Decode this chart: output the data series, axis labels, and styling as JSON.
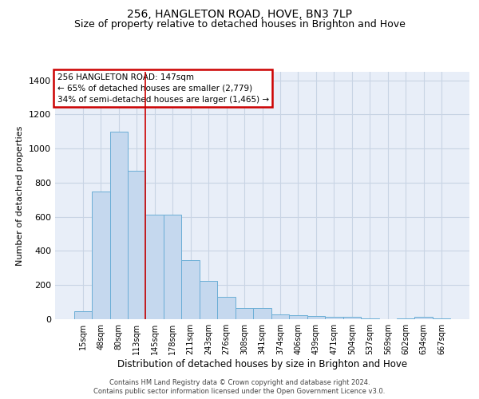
{
  "title": "256, HANGLETON ROAD, HOVE, BN3 7LP",
  "subtitle": "Size of property relative to detached houses in Brighton and Hove",
  "xlabel": "Distribution of detached houses by size in Brighton and Hove",
  "ylabel": "Number of detached properties",
  "footer_line1": "Contains HM Land Registry data © Crown copyright and database right 2024.",
  "footer_line2": "Contains public sector information licensed under the Open Government Licence v3.0.",
  "categories": [
    "15sqm",
    "48sqm",
    "80sqm",
    "113sqm",
    "145sqm",
    "178sqm",
    "211sqm",
    "243sqm",
    "276sqm",
    "308sqm",
    "341sqm",
    "374sqm",
    "406sqm",
    "439sqm",
    "471sqm",
    "504sqm",
    "537sqm",
    "569sqm",
    "602sqm",
    "634sqm",
    "667sqm"
  ],
  "values": [
    48,
    750,
    1100,
    870,
    615,
    615,
    348,
    225,
    130,
    65,
    65,
    28,
    25,
    20,
    12,
    12,
    3,
    0,
    3,
    12,
    3
  ],
  "bar_color": "#c5d8ee",
  "bar_edge_color": "#6baed6",
  "annotation_text_line1": "256 HANGLETON ROAD: 147sqm",
  "annotation_text_line2": "← 65% of detached houses are smaller (2,779)",
  "annotation_text_line3": "34% of semi-detached houses are larger (1,465) →",
  "annotation_box_facecolor": "#ffffff",
  "annotation_border_color": "#cc0000",
  "vline_x_index": 3.5,
  "vline_color": "#cc0000",
  "ylim": [
    0,
    1450
  ],
  "yticks": [
    0,
    200,
    400,
    600,
    800,
    1000,
    1200,
    1400
  ],
  "grid_color": "#c8d4e4",
  "background_color": "#e8eef8",
  "title_fontsize": 10,
  "subtitle_fontsize": 9,
  "ylabel_fontsize": 8,
  "xlabel_fontsize": 8.5,
  "tick_fontsize": 8,
  "xtick_fontsize": 7
}
